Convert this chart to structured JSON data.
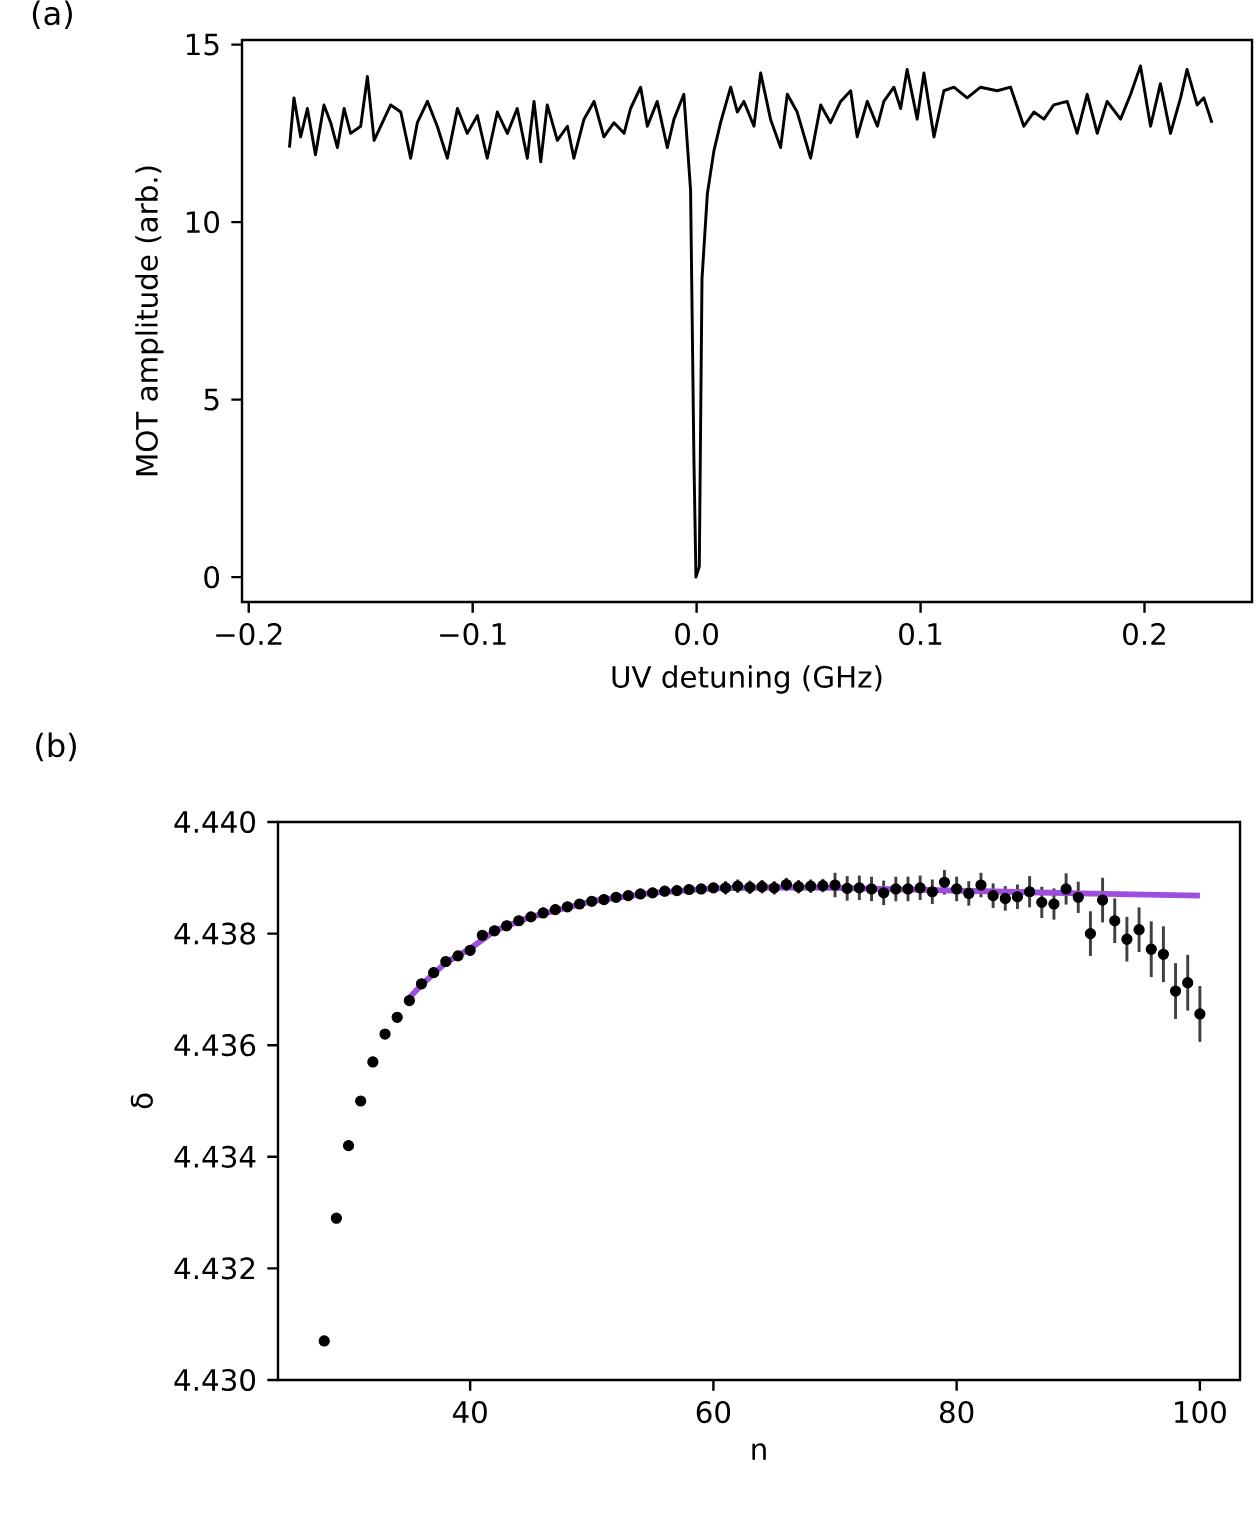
{
  "chart_data": [
    {
      "type": "line",
      "title": "(a)",
      "xlabel": "UV detuning (GHz)",
      "ylabel": "MOT amplitude (arb.)",
      "xlim": [
        -0.203,
        0.248
      ],
      "ylim": [
        -0.7,
        15.13
      ],
      "xticks": [
        {
          "value": -0.2,
          "label": "−0.2"
        },
        {
          "value": -0.1,
          "label": "−0.1"
        },
        {
          "value": 0,
          "label": "0.0"
        },
        0.1,
        0.2
      ],
      "yticks": [
        0,
        5,
        10,
        15
      ],
      "series": [
        {
          "color": "#000000",
          "x": [
            -0.1818,
            -0.1798,
            -0.1768,
            -0.1738,
            -0.1702,
            -0.1664,
            -0.1634,
            -0.1604,
            -0.1574,
            -0.1545,
            -0.15,
            -0.147,
            -0.144,
            -0.1396,
            -0.1366,
            -0.1321,
            -0.1277,
            -0.1247,
            -0.1202,
            -0.1158,
            -0.1113,
            -0.1068,
            -0.1024,
            -0.0979,
            -0.0935,
            -0.089,
            -0.0845,
            -0.0801,
            -0.0756,
            -0.0726,
            -0.0696,
            -0.0667,
            -0.0622,
            -0.0577,
            -0.0548,
            -0.0503,
            -0.0458,
            -0.0414,
            -0.0369,
            -0.0324,
            -0.0295,
            -0.025,
            -0.022,
            -0.0176,
            -0.0131,
            -0.0101,
            -0.0057,
            -0.0027,
            -0.0012,
            -0.0003,
            0.0012,
            0.0024,
            0.0048,
            0.0077,
            0.0107,
            0.0152,
            0.0182,
            0.0211,
            0.0256,
            0.0286,
            0.033,
            0.0375,
            0.0405,
            0.0449,
            0.0509,
            0.0554,
            0.0598,
            0.0643,
            0.0688,
            0.0717,
            0.0762,
            0.0807,
            0.0836,
            0.0881,
            0.0911,
            0.094,
            0.0985,
            0.1015,
            0.106,
            0.1104,
            0.1149,
            0.1208,
            0.1268,
            0.1342,
            0.1402,
            0.1461,
            0.1506,
            0.1551,
            0.1595,
            0.1655,
            0.1699,
            0.1744,
            0.1789,
            0.1833,
            0.1893,
            0.1938,
            0.1982,
            0.2027,
            0.2071,
            0.2116,
            0.2161,
            0.219,
            0.2235,
            0.2265,
            0.2301
          ],
          "values": [
            12.1,
            13.5,
            12.4,
            13.2,
            11.9,
            13.3,
            12.8,
            12.1,
            13.2,
            12.5,
            12.7,
            14.1,
            12.3,
            12.9,
            13.3,
            13.1,
            11.8,
            12.8,
            13.4,
            12.7,
            11.8,
            13.2,
            12.5,
            13.0,
            11.8,
            13.1,
            12.5,
            13.2,
            11.8,
            13.4,
            11.7,
            13.3,
            12.3,
            12.7,
            11.8,
            12.9,
            13.4,
            12.4,
            12.8,
            12.5,
            13.2,
            13.8,
            12.7,
            13.4,
            12.1,
            12.9,
            13.6,
            10.9,
            3.3,
            0.0,
            0.3,
            8.4,
            10.8,
            12.0,
            12.8,
            13.8,
            13.1,
            13.4,
            12.7,
            14.2,
            12.9,
            12.1,
            13.6,
            13.1,
            11.8,
            13.3,
            12.8,
            13.4,
            13.7,
            12.4,
            13.4,
            12.7,
            13.4,
            13.8,
            13.2,
            14.3,
            12.9,
            14.2,
            12.4,
            13.7,
            13.8,
            13.5,
            13.8,
            13.7,
            13.8,
            12.7,
            13.1,
            12.9,
            13.3,
            13.4,
            12.5,
            13.6,
            12.5,
            13.4,
            12.9,
            13.6,
            14.4,
            12.7,
            13.9,
            12.5,
            13.5,
            14.3,
            13.3,
            13.5,
            12.8
          ]
        }
      ]
    },
    {
      "type": "scatter",
      "title": "(b)",
      "xlabel": "n",
      "ylabel": "δ",
      "xlim": [
        24.2,
        103.3
      ],
      "ylim": [
        4.43,
        4.44
      ],
      "xticks": [
        40,
        60,
        80,
        100
      ],
      "yticks": [
        {
          "value": 4.43,
          "label": "4.430"
        },
        {
          "value": 4.432,
          "label": "4.432"
        },
        {
          "value": 4.434,
          "label": "4.434"
        },
        {
          "value": 4.436,
          "label": "4.436"
        },
        {
          "value": 4.438,
          "label": "4.438"
        },
        {
          "value": 4.44,
          "label": "4.440"
        }
      ],
      "series": [
        {
          "type": "scatter",
          "color": "#000000",
          "marker": "circle",
          "x": [
            28,
            29,
            30,
            31,
            32,
            33,
            34,
            35,
            36,
            37,
            38,
            39,
            40,
            41,
            42,
            43,
            44,
            45,
            46,
            47,
            48,
            49,
            50,
            51,
            52,
            53,
            54,
            55,
            56,
            57,
            58,
            59,
            60,
            61,
            62,
            63,
            64,
            65,
            66,
            67,
            68,
            69,
            70,
            71,
            72,
            73,
            74,
            75,
            76,
            77,
            78,
            79,
            80,
            81,
            82,
            83,
            84,
            85,
            86,
            87,
            88,
            89,
            90,
            91,
            92,
            93,
            94,
            95,
            96,
            97,
            98,
            99,
            100
          ],
          "values": [
            4.4307,
            4.4329,
            4.4342,
            4.435,
            4.4357,
            4.4362,
            4.4365,
            4.4368,
            4.4371,
            4.4373,
            4.4375,
            4.4376,
            4.4377,
            4.43797,
            4.43805,
            4.43814,
            4.43823,
            4.4383,
            4.43837,
            4.43843,
            4.43848,
            4.43853,
            4.43858,
            4.43861,
            4.43865,
            4.43868,
            4.43871,
            4.43873,
            4.43876,
            4.43877,
            4.43879,
            4.4388,
            4.43882,
            4.43882,
            4.43885,
            4.43883,
            4.43884,
            4.43882,
            4.43888,
            4.43884,
            4.43885,
            4.43886,
            4.43887,
            4.43881,
            4.43882,
            4.4388,
            4.43873,
            4.4388,
            4.4388,
            4.43882,
            4.43875,
            4.43892,
            4.4388,
            4.43872,
            4.43887,
            4.43868,
            4.43863,
            4.43866,
            4.43875,
            4.43856,
            4.43853,
            4.4388,
            4.43865,
            4.438,
            4.4386,
            4.43823,
            4.4379,
            4.43807,
            4.43772,
            4.43763,
            4.43697,
            4.43712,
            4.43656
          ],
          "errors": [
            null,
            null,
            null,
            null,
            null,
            null,
            null,
            null,
            null,
            null,
            null,
            null,
            null,
            null,
            null,
            null,
            null,
            null,
            null,
            null,
            null,
            null,
            null,
            null,
            null,
            null,
            null,
            null,
            null,
            null,
            null,
            null,
            null,
            0.00012,
            0.00012,
            0.00012,
            0.00012,
            0.00012,
            0.00012,
            0.00012,
            0.00012,
            0.00012,
            0.00022,
            0.00022,
            0.00022,
            0.00022,
            0.00022,
            0.00022,
            0.00022,
            0.00022,
            0.00022,
            0.00022,
            0.00022,
            0.00022,
            0.00022,
            0.00022,
            0.00022,
            0.00022,
            0.00028,
            0.00028,
            0.00028,
            0.00028,
            0.00028,
            0.0004,
            0.0004,
            0.0004,
            0.0004,
            0.0004,
            0.0005,
            0.0005,
            0.0005,
            0.0005,
            0.0005
          ]
        },
        {
          "type": "line",
          "color": "#9d4edd",
          "x": [
            35,
            36,
            38,
            40,
            42,
            45,
            50,
            55,
            60,
            65,
            70,
            80,
            90,
            100
          ],
          "values": [
            4.43685,
            4.43708,
            4.43748,
            4.43773,
            4.43805,
            4.4383,
            4.43858,
            4.43873,
            4.43881,
            4.43883,
            4.43882,
            4.43877,
            4.43872,
            4.43868
          ]
        }
      ]
    }
  ]
}
